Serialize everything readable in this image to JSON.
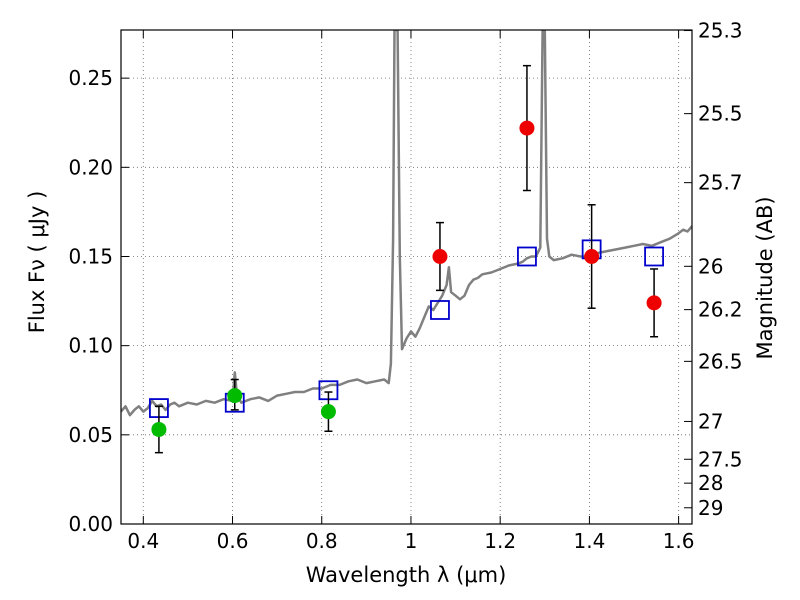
{
  "chart_data": {
    "type": "scatter",
    "xlabel": "Wavelength  λ (μm)",
    "ylabel": "Flux  Fν ( μJy )",
    "ylabel_right": "Magnitude (AB)",
    "xlim": [
      0.35,
      1.63
    ],
    "ylim": [
      0.0,
      0.277
    ],
    "grid": true,
    "x_ticks": [
      0.4,
      0.6,
      0.8,
      1.0,
      1.2,
      1.4,
      1.6
    ],
    "x_tick_labels": [
      "0.4",
      "0.6",
      "0.8",
      "1",
      "1.2",
      "1.4",
      "1.6"
    ],
    "y_ticks": [
      0.0,
      0.05,
      0.1,
      0.15,
      0.2,
      0.25
    ],
    "y_tick_labels": [
      "0.00",
      "0.05",
      "0.10",
      "0.15",
      "0.20",
      "0.25"
    ],
    "right_ticks": [
      {
        "flux": 0.2767,
        "label": "25.3"
      },
      {
        "flux": 0.2301,
        "label": "25.5"
      },
      {
        "flux": 0.1914,
        "label": "25.7"
      },
      {
        "flux": 0.1445,
        "label": "26"
      },
      {
        "flux": 0.1202,
        "label": "26.2"
      },
      {
        "flux": 0.0912,
        "label": "26.5"
      },
      {
        "flux": 0.0575,
        "label": "27"
      },
      {
        "flux": 0.0363,
        "label": "27.5"
      },
      {
        "flux": 0.0229,
        "label": "28"
      },
      {
        "flux": 0.0091,
        "label": "29"
      }
    ],
    "series": [
      {
        "kind": "line",
        "color": "#808080",
        "points": [
          [
            0.35,
            0.063
          ],
          [
            0.36,
            0.066
          ],
          [
            0.37,
            0.061
          ],
          [
            0.38,
            0.064
          ],
          [
            0.39,
            0.066
          ],
          [
            0.4,
            0.063
          ],
          [
            0.41,
            0.065
          ],
          [
            0.42,
            0.069
          ],
          [
            0.43,
            0.066
          ],
          [
            0.44,
            0.067
          ],
          [
            0.45,
            0.064
          ],
          [
            0.46,
            0.067
          ],
          [
            0.47,
            0.068
          ],
          [
            0.48,
            0.066
          ],
          [
            0.5,
            0.068
          ],
          [
            0.52,
            0.067
          ],
          [
            0.54,
            0.069
          ],
          [
            0.56,
            0.068
          ],
          [
            0.58,
            0.07
          ],
          [
            0.6,
            0.069
          ],
          [
            0.605,
            0.085
          ],
          [
            0.61,
            0.072
          ],
          [
            0.62,
            0.068
          ],
          [
            0.64,
            0.07
          ],
          [
            0.66,
            0.071
          ],
          [
            0.68,
            0.069
          ],
          [
            0.7,
            0.072
          ],
          [
            0.72,
            0.073
          ],
          [
            0.74,
            0.074
          ],
          [
            0.76,
            0.074
          ],
          [
            0.78,
            0.076
          ],
          [
            0.8,
            0.076
          ],
          [
            0.82,
            0.078
          ],
          [
            0.84,
            0.078
          ],
          [
            0.86,
            0.08
          ],
          [
            0.88,
            0.081
          ],
          [
            0.9,
            0.079
          ],
          [
            0.92,
            0.08
          ],
          [
            0.94,
            0.081
          ],
          [
            0.95,
            0.079
          ],
          [
            0.955,
            0.09
          ],
          [
            0.96,
            0.16
          ],
          [
            0.963,
            0.277
          ],
          [
            0.97,
            0.277
          ],
          [
            0.975,
            0.15
          ],
          [
            0.98,
            0.098
          ],
          [
            0.99,
            0.104
          ],
          [
            1.0,
            0.108
          ],
          [
            1.01,
            0.105
          ],
          [
            1.02,
            0.11
          ],
          [
            1.03,
            0.116
          ],
          [
            1.04,
            0.122
          ],
          [
            1.05,
            0.12
          ],
          [
            1.06,
            0.124
          ],
          [
            1.07,
            0.128
          ],
          [
            1.08,
            0.134
          ],
          [
            1.085,
            0.144
          ],
          [
            1.09,
            0.13
          ],
          [
            1.1,
            0.128
          ],
          [
            1.11,
            0.126
          ],
          [
            1.12,
            0.128
          ],
          [
            1.13,
            0.134
          ],
          [
            1.14,
            0.137
          ],
          [
            1.15,
            0.138
          ],
          [
            1.16,
            0.14
          ],
          [
            1.18,
            0.141
          ],
          [
            1.2,
            0.143
          ],
          [
            1.22,
            0.145
          ],
          [
            1.24,
            0.146
          ],
          [
            1.25,
            0.147
          ],
          [
            1.26,
            0.149
          ],
          [
            1.27,
            0.15
          ],
          [
            1.28,
            0.15
          ],
          [
            1.29,
            0.155
          ],
          [
            1.295,
            0.277
          ],
          [
            1.3,
            0.277
          ],
          [
            1.305,
            0.16
          ],
          [
            1.31,
            0.15
          ],
          [
            1.32,
            0.148
          ],
          [
            1.34,
            0.149
          ],
          [
            1.36,
            0.151
          ],
          [
            1.38,
            0.15
          ],
          [
            1.4,
            0.15
          ],
          [
            1.42,
            0.152
          ],
          [
            1.44,
            0.153
          ],
          [
            1.46,
            0.154
          ],
          [
            1.48,
            0.155
          ],
          [
            1.5,
            0.156
          ],
          [
            1.52,
            0.157
          ],
          [
            1.54,
            0.156
          ],
          [
            1.56,
            0.158
          ],
          [
            1.58,
            0.16
          ],
          [
            1.6,
            0.163
          ],
          [
            1.61,
            0.165
          ],
          [
            1.62,
            0.164
          ],
          [
            1.63,
            0.167
          ]
        ]
      },
      {
        "kind": "squares",
        "color": "#0000cc",
        "points": [
          [
            0.435,
            0.065
          ],
          [
            0.605,
            0.068
          ],
          [
            0.815,
            0.075
          ],
          [
            1.065,
            0.12
          ],
          [
            1.26,
            0.15
          ],
          [
            1.405,
            0.154
          ],
          [
            1.545,
            0.15
          ]
        ]
      },
      {
        "kind": "errorbar_points",
        "color": "#00bb00",
        "points": [
          {
            "x": 0.435,
            "y": 0.053,
            "err_low": 0.04,
            "err_high": 0.066
          },
          {
            "x": 0.605,
            "y": 0.072,
            "err_low": 0.064,
            "err_high": 0.081
          },
          {
            "x": 0.815,
            "y": 0.063,
            "err_low": 0.052,
            "err_high": 0.074
          }
        ]
      },
      {
        "kind": "errorbar_points",
        "color": "#ee0000",
        "points": [
          {
            "x": 1.065,
            "y": 0.15,
            "err_low": 0.131,
            "err_high": 0.169
          },
          {
            "x": 1.26,
            "y": 0.222,
            "err_low": 0.187,
            "err_high": 0.257
          },
          {
            "x": 1.405,
            "y": 0.15,
            "err_low": 0.121,
            "err_high": 0.179
          },
          {
            "x": 1.545,
            "y": 0.124,
            "err_low": 0.105,
            "err_high": 0.143
          }
        ]
      }
    ]
  }
}
